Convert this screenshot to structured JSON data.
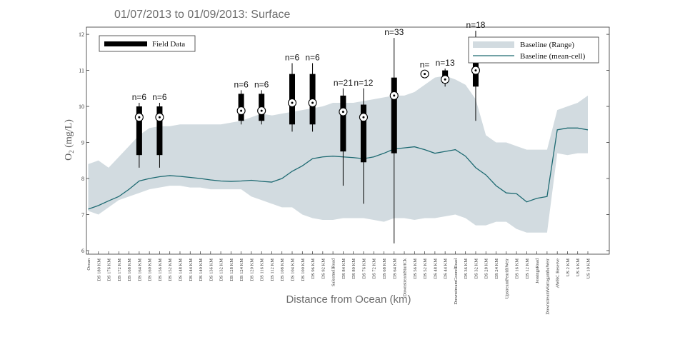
{
  "chart_data": {
    "type": "line",
    "title": "01/07/2013 to 01/09/2013: Surface",
    "xlabel": "Distance from Ocean (km)",
    "ylabel_main": "O",
    "ylabel_sub": "2",
    "ylabel_unit": " (mg/L)",
    "ylim": [
      5.9,
      12.2
    ],
    "yticks": [
      "6",
      "7",
      "8",
      "9",
      "10",
      "11",
      "12"
    ],
    "categories": [
      "Ocean",
      "DS 180 KM",
      "DS 176 KM",
      "DS 172 KM",
      "DS 168 KM",
      "DS 164 KM",
      "DS 160 KM",
      "DS 156 KM",
      "DS 152 KM",
      "DS 148 KM",
      "DS 144 KM",
      "DS 140 KM",
      "DS 136 KM",
      "DS 132 KM",
      "DS 128 KM",
      "DS 124 KM",
      "DS 120 KM",
      "DS 116 KM",
      "DS 112 KM",
      "DS 108 KM",
      "DS 104 KM",
      "DS 100 KM",
      "DS 96 KM",
      "DS 92 KM",
      "SalesmellRoad",
      "DS 84 KM",
      "DS 80 KM",
      "DS 76 KM",
      "DS 72 KM",
      "DS 68 KM",
      "DS 64 KM",
      "DownstreamSturtCk",
      "DS 56 KM",
      "DS 52 KM",
      "DS 48 KM",
      "DS 44 KM",
      "DownstreamGoondRoad",
      "DS 36 KM",
      "DS 32 KM",
      "DS 28 KM",
      "DS 24 KM",
      "UpstreamPenrithWeir",
      "DS 16 KM",
      "DS 12 KM",
      "JessingsRoad",
      "DownstreamWarragambaWeir",
      "AWRC Reserve",
      "US 2 KM",
      "US 6 KM",
      "US 10 KM"
    ],
    "series": [
      {
        "name": "Baseline (Range)",
        "lower": [
          7.1,
          7.0,
          7.2,
          7.4,
          7.5,
          7.6,
          7.7,
          7.75,
          7.8,
          7.8,
          7.75,
          7.75,
          7.7,
          7.7,
          7.7,
          7.7,
          7.5,
          7.4,
          7.3,
          7.2,
          7.2,
          7.0,
          6.9,
          6.85,
          6.85,
          6.9,
          6.9,
          6.9,
          6.85,
          6.8,
          6.9,
          6.9,
          6.85,
          6.9,
          6.9,
          6.95,
          7.0,
          6.9,
          6.7,
          6.7,
          6.8,
          6.8,
          6.6,
          6.5,
          6.5,
          6.5,
          8.7,
          8.65,
          8.7,
          8.7
        ],
        "upper": [
          8.4,
          8.5,
          8.3,
          8.6,
          8.9,
          9.2,
          9.4,
          9.45,
          9.45,
          9.5,
          9.5,
          9.5,
          9.5,
          9.5,
          9.55,
          9.6,
          9.7,
          9.8,
          9.75,
          9.8,
          9.85,
          9.9,
          9.95,
          10.0,
          10.1,
          10.1,
          10.1,
          10.15,
          10.2,
          10.25,
          10.3,
          10.3,
          10.4,
          10.6,
          10.8,
          10.85,
          10.75,
          10.6,
          10.2,
          9.2,
          9.0,
          9.0,
          8.9,
          8.8,
          8.8,
          8.8,
          9.9,
          10.0,
          10.1,
          10.3
        ]
      },
      {
        "name": "Baseline (mean-cell)",
        "values": [
          7.15,
          7.25,
          7.38,
          7.5,
          7.7,
          7.93,
          8.0,
          8.05,
          8.08,
          8.06,
          8.03,
          8.0,
          7.96,
          7.93,
          7.92,
          7.93,
          7.95,
          7.92,
          7.9,
          8.0,
          8.2,
          8.35,
          8.55,
          8.6,
          8.62,
          8.6,
          8.58,
          8.55,
          8.6,
          8.7,
          8.82,
          8.85,
          8.88,
          8.8,
          8.7,
          8.75,
          8.8,
          8.62,
          8.3,
          8.1,
          7.8,
          7.6,
          7.58,
          7.35,
          7.45,
          7.5,
          9.35,
          9.4,
          9.4,
          9.35
        ]
      }
    ],
    "field_data": {
      "name": "Field Data",
      "sites": [
        {
          "index": 5,
          "n": "n=6",
          "min": 8.3,
          "q1": 8.65,
          "median": 9.7,
          "q3": 10.0,
          "max": 10.1
        },
        {
          "index": 7,
          "n": "n=6",
          "min": 8.3,
          "q1": 8.65,
          "median": 9.7,
          "q3": 10.0,
          "max": 10.1
        },
        {
          "index": 15,
          "n": "n=6",
          "min": 9.5,
          "q1": 9.6,
          "median": 9.88,
          "q3": 10.35,
          "max": 10.45
        },
        {
          "index": 17,
          "n": "n=6",
          "min": 9.5,
          "q1": 9.6,
          "median": 9.88,
          "q3": 10.35,
          "max": 10.45
        },
        {
          "index": 20,
          "n": "n=6",
          "min": 9.3,
          "q1": 9.5,
          "median": 10.1,
          "q3": 10.9,
          "max": 11.2
        },
        {
          "index": 22,
          "n": "n=6",
          "min": 9.3,
          "q1": 9.5,
          "median": 10.1,
          "q3": 10.9,
          "max": 11.2
        },
        {
          "index": 25,
          "n": "n=21",
          "min": 7.8,
          "q1": 8.75,
          "median": 9.85,
          "q3": 10.3,
          "max": 10.5
        },
        {
          "index": 27,
          "n": "n=12",
          "min": 7.3,
          "q1": 8.45,
          "median": 9.7,
          "q3": 10.05,
          "max": 10.5
        },
        {
          "index": 30,
          "n": "n=33",
          "min": 6.2,
          "q1": 8.7,
          "median": 10.3,
          "q3": 10.8,
          "max": 11.9
        },
        {
          "index": 33,
          "n": "n=",
          "min": 10.8,
          "q1": 10.85,
          "median": 10.9,
          "q3": 10.95,
          "max": 11.0
        },
        {
          "index": 35,
          "n": "n=13",
          "min": 10.55,
          "q1": 10.65,
          "median": 10.75,
          "q3": 11.0,
          "max": 11.05
        },
        {
          "index": 38,
          "n": "n=18",
          "min": 9.6,
          "q1": 10.55,
          "median": 11.0,
          "q3": 11.5,
          "max": 12.1
        }
      ]
    },
    "legend_position": "top-left and top-right",
    "colors": {
      "range_fill": "#d2dbe0",
      "mean_line": "#1e6a72",
      "box": "#000000",
      "axis": "#333333"
    }
  }
}
